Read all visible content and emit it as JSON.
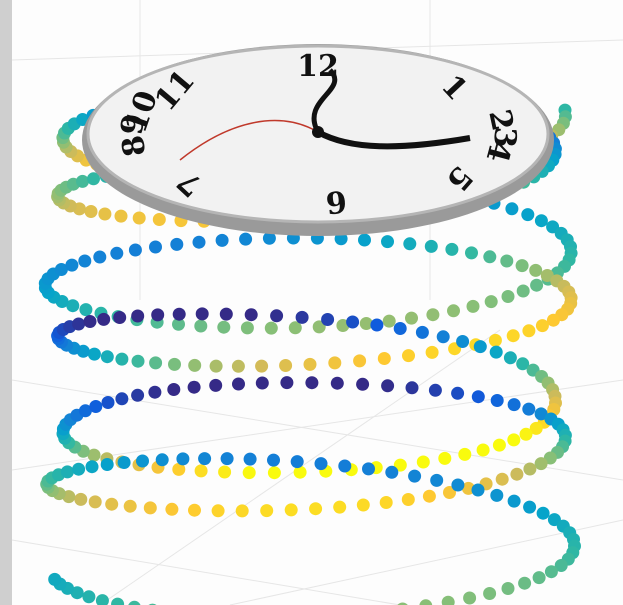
{
  "clock": {
    "numerals": [
      "12",
      "1",
      "2",
      "3",
      "4",
      "5",
      "6",
      "7",
      "8",
      "9",
      "10",
      "11"
    ]
  }
}
